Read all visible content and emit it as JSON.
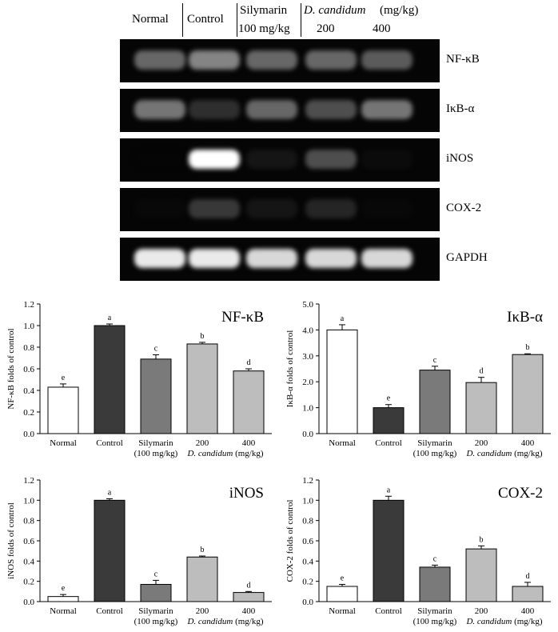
{
  "blot": {
    "lanes": [
      "Normal",
      "Control",
      "Silymarin",
      "D. candidum",
      "(mg/kg)"
    ],
    "lanes2": [
      "100 mg/kg",
      "200",
      "400"
    ],
    "bands": [
      {
        "label": "NF-κB",
        "intensity": [
          0.55,
          0.65,
          0.55,
          0.55,
          0.5
        ]
      },
      {
        "label": "IκB-α",
        "intensity": [
          0.6,
          0.3,
          0.55,
          0.45,
          0.6
        ]
      },
      {
        "label": "iNOS",
        "intensity": [
          0.02,
          1.0,
          0.15,
          0.45,
          0.08
        ]
      },
      {
        "label": "COX-2",
        "intensity": [
          0.05,
          0.35,
          0.15,
          0.25,
          0.05
        ]
      },
      {
        "label": "GAPDH",
        "intensity": [
          0.95,
          0.95,
          0.9,
          0.9,
          0.9
        ]
      }
    ]
  },
  "chart_data": [
    {
      "type": "bar",
      "title": "NF-κB",
      "ylabel": "NF-κB folds of control",
      "ylim": [
        0,
        1.2
      ],
      "yticks": [
        "0.0",
        "0.2",
        "0.4",
        "0.6",
        "0.8",
        "1.0",
        "1.2"
      ],
      "categories": [
        "Normal",
        "Control",
        "Silymarin|(100 mg/kg)",
        "200",
        "400"
      ],
      "values": [
        0.43,
        1.0,
        0.69,
        0.83,
        0.58
      ],
      "errors": [
        0.03,
        0.015,
        0.04,
        0.015,
        0.02
      ],
      "letters": [
        "e",
        "a",
        "c",
        "b",
        "d"
      ]
    },
    {
      "type": "bar",
      "title": "IκB-α",
      "ylabel": "IκB-α folds of control",
      "ylim": [
        0,
        5
      ],
      "yticks": [
        "0.0",
        "1.0",
        "2.0",
        "3.0",
        "4.0",
        "5.0"
      ],
      "categories": [
        "Normal",
        "Control",
        "Silymarin|(100 mg/kg)",
        "200",
        "400"
      ],
      "values": [
        4.0,
        1.0,
        2.45,
        1.97,
        3.05
      ],
      "errors": [
        0.2,
        0.12,
        0.15,
        0.2,
        0.03
      ],
      "letters": [
        "a",
        "e",
        "c",
        "d",
        "b"
      ]
    },
    {
      "type": "bar",
      "title": "iNOS",
      "ylabel": "iNOS folds of control",
      "ylim": [
        0,
        1.2
      ],
      "yticks": [
        "0.0",
        "0.2",
        "0.4",
        "0.6",
        "0.8",
        "1.0",
        "1.2"
      ],
      "categories": [
        "Normal",
        "Control",
        "Silymarin|(100 mg/kg)",
        "200",
        "400"
      ],
      "values": [
        0.05,
        1.0,
        0.17,
        0.44,
        0.09
      ],
      "errors": [
        0.02,
        0.015,
        0.04,
        0.01,
        0.01
      ],
      "letters": [
        "e",
        "a",
        "c",
        "b",
        "d"
      ]
    },
    {
      "type": "bar",
      "title": "COX-2",
      "ylabel": "COX-2 folds of control",
      "ylim": [
        0,
        1.2
      ],
      "yticks": [
        "0.0",
        "0.2",
        "0.4",
        "0.6",
        "0.8",
        "1.0",
        "1.2"
      ],
      "categories": [
        "Normal",
        "Control",
        "Silymarin|(100 mg/kg)",
        "200",
        "400"
      ],
      "values": [
        0.15,
        1.0,
        0.34,
        0.52,
        0.15
      ],
      "errors": [
        0.02,
        0.04,
        0.02,
        0.03,
        0.04
      ],
      "letters": [
        "e",
        "a",
        "c",
        "b",
        "d"
      ]
    }
  ],
  "group_label": {
    "italic": "D. candidum",
    "rest": " (mg/kg)"
  },
  "colors": [
    "#ffffff",
    "#3a3a3a",
    "#7a7a7a",
    "#bdbdbd",
    "#bdbdbd"
  ]
}
